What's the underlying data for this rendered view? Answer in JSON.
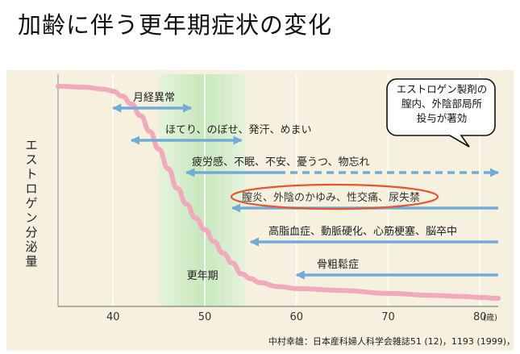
{
  "title": "加齢に伴う更年期症状の変化",
  "chart_data": {
    "type": "line",
    "ylabel": "エストロゲン分泌量",
    "xlabel": "",
    "xlim": [
      34,
      82
    ],
    "x_ticks": [
      40,
      50,
      60,
      70,
      80
    ],
    "x_unit": "(歳)",
    "grid": "vertical",
    "series": [
      {
        "x": [
          34,
          37,
          39,
          40,
          41,
          42,
          43,
          44,
          45,
          46,
          47,
          48,
          49,
          50,
          51,
          52,
          53,
          54,
          55,
          56,
          58,
          60,
          65,
          70,
          75,
          78,
          80,
          82
        ],
        "y": [
          100,
          99.5,
          98.5,
          97.5,
          95,
          91,
          85,
          77,
          68,
          58,
          48,
          40,
          33,
          27,
          21,
          15,
          10,
          4.5,
          2,
          0,
          -2,
          -3,
          -4,
          -5.5,
          -6.5,
          -7,
          -7.5,
          -8
        ]
      }
    ],
    "highlight_band": {
      "from": 45,
      "to": 54.5,
      "label": "更年期"
    },
    "symptom_ranges": [
      {
        "label": "月経異常",
        "from": 40,
        "to": 48.5,
        "start_arrow": true,
        "end_arrow": true,
        "dashed_from": null
      },
      {
        "label": "ほてり、のぼせ、発汗、めまい",
        "from": 42,
        "to": 54,
        "start_arrow": true,
        "end_arrow": true,
        "dashed_from": null
      },
      {
        "label": "疲労感、不眠、不安、憂うつ、物忘れ",
        "from": 48,
        "to": 82,
        "start_arrow": true,
        "end_arrow": true,
        "dashed_from": 58
      },
      {
        "label": "膣炎、外陰のかゆみ、性交痛、尿失禁",
        "from": 53,
        "to": 82,
        "start_arrow": true,
        "end_arrow": false,
        "dashed_from": null
      },
      {
        "label": "高脂血症、動脈硬化、心筋梗塞、脳卒中",
        "from": 55,
        "to": 82,
        "start_arrow": true,
        "end_arrow": false,
        "dashed_from": null
      },
      {
        "label": "骨粗鬆症",
        "from": 60,
        "to": 82,
        "start_arrow": true,
        "end_arrow": false,
        "dashed_from": null
      }
    ],
    "callout_lines": [
      "エストロゲン製剤の",
      "膣内、外陰部局所",
      "投与が著効"
    ],
    "citation": "中村幸雄：日本産科婦人科学会雑誌51 (12)，1193 (1999)，"
  },
  "colors": {
    "panel": "#f6f0df",
    "band": "#c7e7bd",
    "curve": "#f2a9bb",
    "arrow": "#72acd6",
    "ellipse": "#e8542c",
    "grid": "#ffffff"
  }
}
